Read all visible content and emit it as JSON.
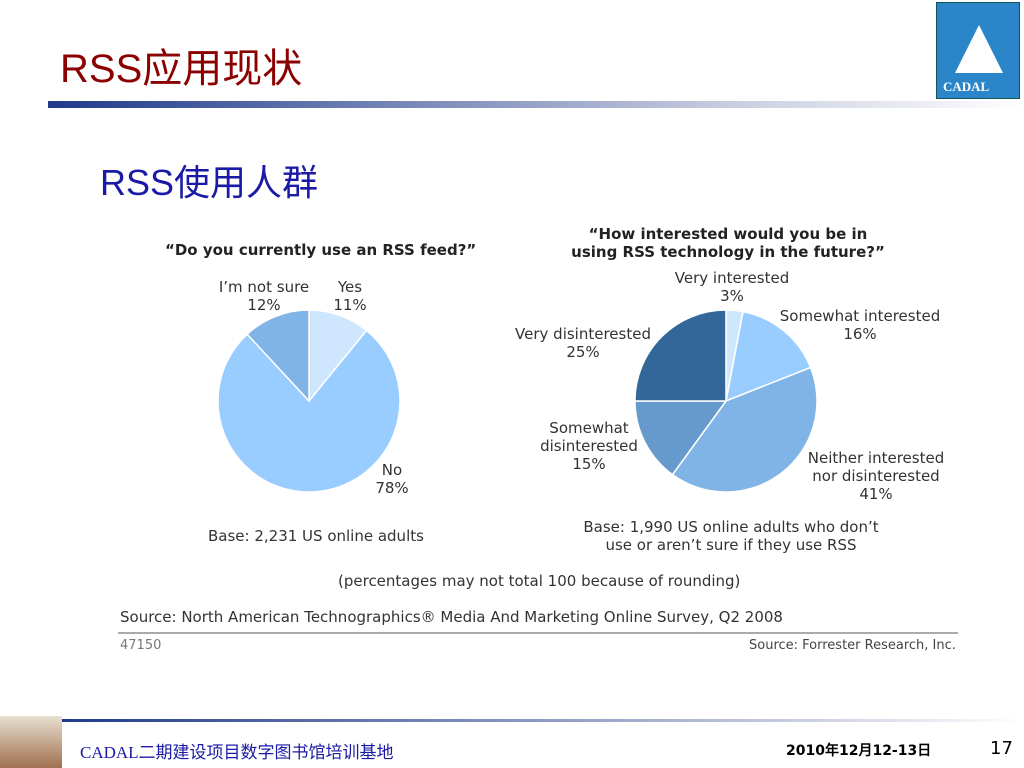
{
  "slide": {
    "title": "RSS应用现状",
    "subtitle": "RSS使用人群",
    "logo": "CADAL",
    "footer": "CADAL二期建设项目数字图书馆培训基地",
    "date": "2010年12月12-13日",
    "page": "17"
  },
  "figure": {
    "note": "(percentages may not total 100 because of rounding)",
    "source": "Source: North American Technographics® Media And Marketing Online Survey, Q2 2008",
    "id": "47150",
    "credit": "Source: Forrester Research, Inc."
  },
  "chart_data": [
    {
      "type": "pie",
      "title": "“Do you currently use an RSS feed?”",
      "categories": [
        "Yes",
        "No",
        "I’m not sure"
      ],
      "values": [
        11,
        78,
        12
      ],
      "value_labels": [
        "11%",
        "78%",
        "12%"
      ],
      "colors": [
        "#cfe6ff",
        "#99ccff",
        "#80b3e6"
      ],
      "annotation": "Base: 2,231 US online adults"
    },
    {
      "type": "pie",
      "title": "“How interested would you be in using RSS technology in the future?”",
      "categories": [
        "Very interested",
        "Somewhat interested",
        "Neither interested nor disinterested",
        "Somewhat disinterested",
        "Very disinterested"
      ],
      "values": [
        3,
        16,
        41,
        15,
        25
      ],
      "value_labels": [
        "3%",
        "16%",
        "41%",
        "15%",
        "25%"
      ],
      "colors": [
        "#cfe6ff",
        "#99ccff",
        "#80b3e6",
        "#6699cc",
        "#336699"
      ],
      "annotation": "Base: 1,990 US online adults who don’t use or aren’t sure if they use RSS"
    }
  ]
}
